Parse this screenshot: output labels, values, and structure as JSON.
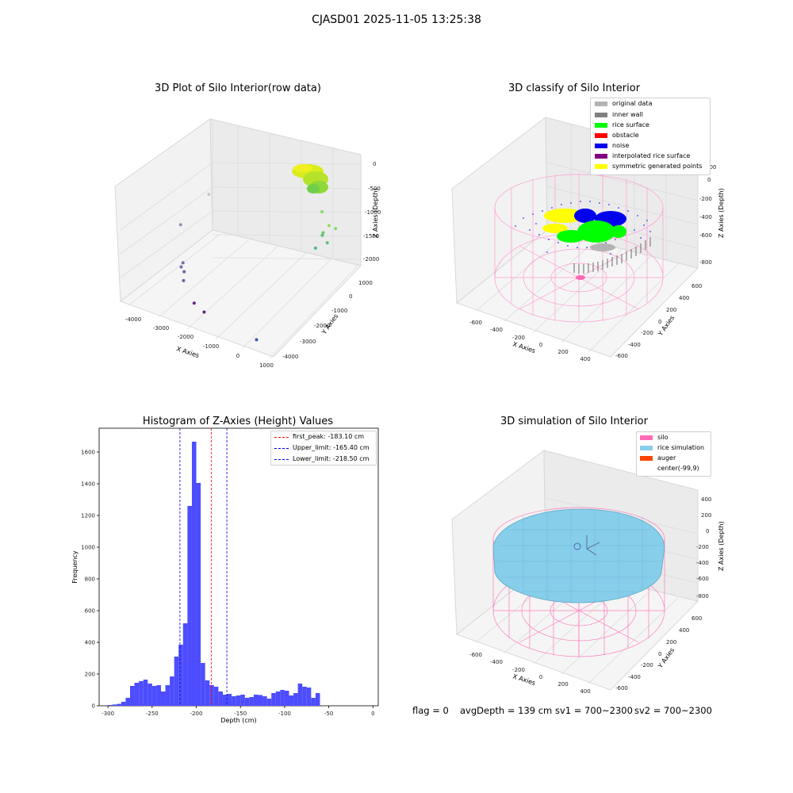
{
  "figure": {
    "suptitle": "CJASD01 2025-11-05 13:25:38",
    "footer": {
      "flag": "flag = 0",
      "avg_depth": "avgDepth = 139 cm",
      "sv1": "sv1 = 700~2300",
      "sv2": "sv2 = 700~2300"
    }
  },
  "colors": {
    "original_data": "#b3b3b3",
    "inner_wall": "#808080",
    "rice_surface": "#00ff00",
    "obstacle": "#ff0000",
    "noise": "#0000ee",
    "interpolated": "#800080",
    "symmetric": "#ffff00",
    "silo": "#ff69b4",
    "rice_sim": "#87ceeb",
    "auger": "#ff4500",
    "hist_bar": "#4d4dff"
  },
  "chart_data": [
    {
      "type": "scatter",
      "subtype": "3d",
      "title": "3D Plot of Silo Interior(row data)",
      "xlabel": "X Axies",
      "ylabel": "Y Axies",
      "zlabel": "Z Axies (Depth)",
      "x_ticks": [
        "-4000",
        "-3000",
        "-2000",
        "-1000",
        "0",
        "1000"
      ],
      "y_ticks": [
        "1000",
        "0",
        "-1000",
        "-2000",
        "-3000",
        "-4000"
      ],
      "z_ticks": [
        "0",
        "-500",
        "-1000",
        "-1500",
        "-2000"
      ],
      "xlim": [
        -4200,
        1000
      ],
      "ylim": [
        -4200,
        1000
      ],
      "zlim": [
        -2300,
        100
      ],
      "points": [
        {
          "x": -3000,
          "y": -1200,
          "z": -600,
          "color": "#c9c9c9"
        },
        {
          "x": -3300,
          "y": -2300,
          "z": -1000,
          "color": "#9b8ab5"
        },
        {
          "x": -2800,
          "y": -3000,
          "z": -1500,
          "color": "#7c69ad"
        },
        {
          "x": -2800,
          "y": -3100,
          "z": -1560,
          "color": "#7c69ad"
        },
        {
          "x": -2700,
          "y": -3100,
          "z": -1640,
          "color": "#6f5ea6"
        },
        {
          "x": -2600,
          "y": -3300,
          "z": -1750,
          "color": "#6f5ea6"
        },
        {
          "x": -2000,
          "y": -3700,
          "z": -1980,
          "color": "#5b2a86"
        },
        {
          "x": -1600,
          "y": -3800,
          "z": -2050,
          "color": "#5b2a86"
        },
        {
          "x": 300,
          "y": -4000,
          "z": -2150,
          "color": "#3b5ba5"
        },
        {
          "x": 0,
          "y": 200,
          "z": -700,
          "color": "#80d96b"
        },
        {
          "x": 100,
          "y": 100,
          "z": -1100,
          "color": "#66cc66"
        },
        {
          "x": -50,
          "y": 300,
          "z": -1250,
          "color": "#5cc27a"
        },
        {
          "x": 150,
          "y": 250,
          "z": -1350,
          "color": "#5cc27a"
        },
        {
          "x": -100,
          "y": 0,
          "z": -1450,
          "color": "#4cb884"
        },
        {
          "x": 400,
          "y": 300,
          "z": -1000,
          "color": "#80d96b"
        },
        {
          "x": 300,
          "y": 100,
          "z": -900,
          "color": "#99dd55"
        }
      ]
    },
    {
      "type": "scatter",
      "subtype": "3d",
      "title": "3D classify of Silo Interior",
      "xlabel": "X Axies",
      "ylabel": "Y Axies",
      "zlabel": "Z Axies (Depth)",
      "x_ticks": [
        "-600",
        "-400",
        "-200",
        "0",
        "200",
        "400"
      ],
      "y_ticks": [
        "600",
        "400",
        "200",
        "0",
        "-200",
        "-400",
        "-600"
      ],
      "z_ticks": [
        "200",
        "0",
        "-200",
        "-400",
        "-600",
        "-800"
      ],
      "legend": [
        "original data",
        "inner wall",
        "rice surface",
        "obstacle",
        "noise",
        "interpolated rice surface",
        "symmetric generated points"
      ]
    },
    {
      "type": "bar",
      "subtype": "histogram",
      "title": "Histogram of Z-Axies (Height) Values",
      "xlabel": "Depth (cm)",
      "ylabel": "Frequency",
      "xlim": [
        -310,
        6
      ],
      "ylim": [
        0,
        1750
      ],
      "x_ticks": [
        -300,
        -250,
        -200,
        -150,
        -100,
        -50,
        0
      ],
      "y_ticks": [
        0,
        200,
        400,
        600,
        800,
        1000,
        1200,
        1400,
        1600
      ],
      "bin_start": -300,
      "bin_width": 5,
      "values": [
        5,
        8,
        12,
        25,
        50,
        125,
        145,
        155,
        165,
        140,
        125,
        130,
        90,
        130,
        185,
        310,
        385,
        520,
        1260,
        1665,
        1405,
        270,
        160,
        130,
        120,
        90,
        70,
        75,
        60,
        65,
        70,
        50,
        55,
        70,
        68,
        60,
        45,
        80,
        90,
        100,
        95,
        65,
        80,
        140,
        120,
        115,
        50,
        80
      ],
      "vlines": [
        {
          "label": "first_peak: -183.10 cm",
          "value": -183.1,
          "color": "#ff0000"
        },
        {
          "label": "Upper_limit: -165.40 cm",
          "value": -165.4,
          "color": "#0000ee"
        },
        {
          "label": "Lower_limit: -218.50 cm",
          "value": -218.5,
          "color": "#0000ee"
        }
      ],
      "grid": false,
      "legend_position": "top-right"
    },
    {
      "type": "scatter",
      "subtype": "3d-surface",
      "title": "3D simulation of Silo Interior",
      "xlabel": "X Axies",
      "ylabel": "Y Axies",
      "zlabel": "Z Axies (Depth)",
      "x_ticks": [
        "-600",
        "-400",
        "-200",
        "0",
        "200",
        "400"
      ],
      "y_ticks": [
        "600",
        "400",
        "200",
        "0",
        "-200",
        "-400",
        "-600"
      ],
      "z_ticks": [
        "400",
        "200",
        "0",
        "-200",
        "-400",
        "-600",
        "-800"
      ],
      "legend": [
        "silo",
        "rice simulation",
        "auger",
        "center(-99,9)"
      ]
    }
  ]
}
